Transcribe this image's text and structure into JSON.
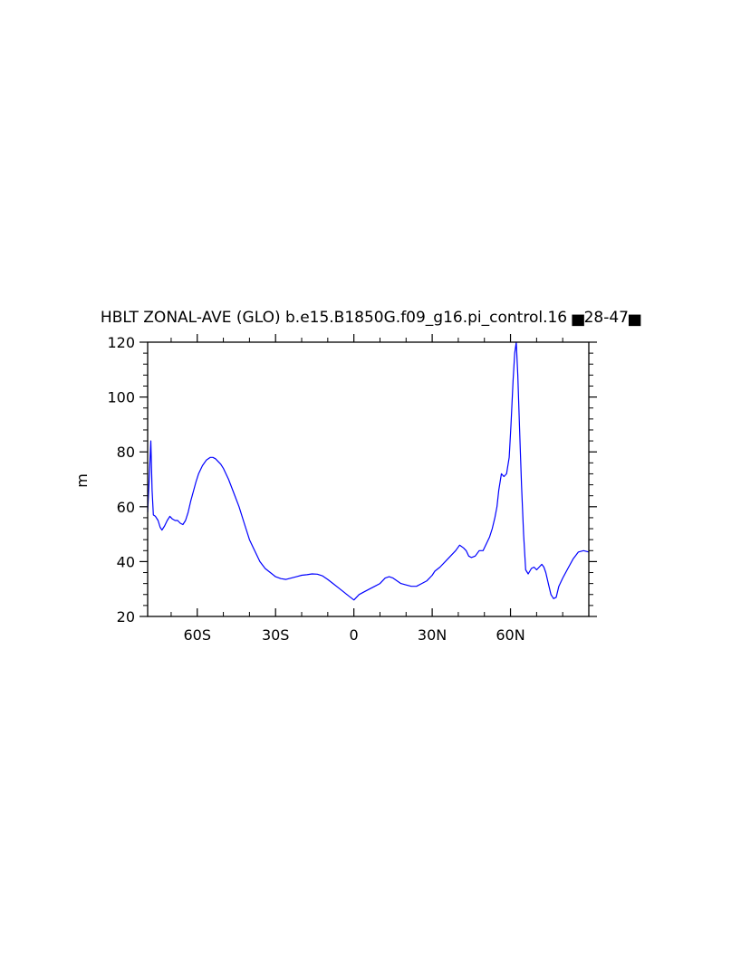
{
  "chart_data": {
    "type": "line",
    "title": "HBLT ZONAL-AVE (GLO) b.e15.B1850G.f09_g16.pi_control.16 ▅28-47▅",
    "xlabel": "",
    "ylabel": "m",
    "xlim": [
      -79,
      90
    ],
    "ylim": [
      20,
      120
    ],
    "x_ticks": [
      {
        "value": -60,
        "label": "60S"
      },
      {
        "value": -30,
        "label": "30S"
      },
      {
        "value": 0,
        "label": "0"
      },
      {
        "value": 30,
        "label": "30N"
      },
      {
        "value": 60,
        "label": "60N"
      }
    ],
    "y_ticks": [
      {
        "value": 20,
        "label": "20"
      },
      {
        "value": 40,
        "label": "40"
      },
      {
        "value": 60,
        "label": "60"
      },
      {
        "value": 80,
        "label": "80"
      },
      {
        "value": 100,
        "label": "100"
      },
      {
        "value": 120,
        "label": "120"
      }
    ],
    "grid": false,
    "line_color": "#0000ff",
    "series": [
      {
        "x": [
          -79,
          -78.4,
          -77.8,
          -77.3,
          -76.8,
          -76,
          -75,
          -74.2,
          -73.5,
          -72.5,
          -71.5,
          -70.5,
          -69.5,
          -68.5,
          -67.5,
          -66.5,
          -65.5,
          -64.5,
          -63.5,
          -62.5,
          -61.5,
          -60.5,
          -59.5,
          -58,
          -56.5,
          -55,
          -54,
          -53,
          -52,
          -51,
          -50,
          -48,
          -46,
          -44,
          -42,
          -40,
          -38,
          -36,
          -34,
          -32,
          -30,
          -28,
          -26,
          -24,
          -22,
          -20,
          -18,
          -16,
          -14,
          -12,
          -10,
          -8,
          -6,
          -4,
          -2,
          0,
          2,
          4,
          6,
          8,
          10,
          12,
          13.5,
          15,
          16.5,
          18,
          20,
          22,
          24,
          26,
          28,
          30,
          31,
          33,
          35,
          37,
          39,
          40.5,
          42,
          43,
          44,
          45,
          46.5,
          48,
          49.5,
          51,
          52,
          53,
          54,
          54.8,
          55.5,
          56.5,
          57.5,
          58.5,
          59.5,
          60.2,
          61,
          61.6,
          62.2,
          62.8,
          63.5,
          64.2,
          65,
          65.8,
          66.8,
          68,
          69,
          70,
          71,
          72,
          72.8,
          73.5,
          74.5,
          75.5,
          76.5,
          77.5,
          78.5,
          80,
          82,
          84,
          86,
          88,
          90
        ],
        "y": [
          58,
          70,
          84,
          66,
          57,
          56.5,
          55,
          52.5,
          51.5,
          53,
          55,
          56.5,
          55.5,
          55,
          55,
          54,
          53.5,
          55,
          58,
          62,
          65.5,
          69,
          72,
          75,
          77,
          78,
          78,
          77.5,
          76.5,
          75.5,
          74,
          70,
          65,
          60,
          54,
          48,
          44,
          40,
          37.5,
          36,
          34.5,
          33.8,
          33.5,
          34,
          34.5,
          35,
          35.2,
          35.5,
          35.4,
          34.8,
          33.5,
          32,
          30.5,
          29,
          27.5,
          26,
          28,
          29,
          30,
          31,
          32,
          34,
          34.5,
          34,
          33,
          32,
          31.5,
          31,
          31,
          32,
          33,
          35,
          36.5,
          38,
          40,
          42,
          44,
          46,
          45,
          44,
          42,
          41.5,
          42,
          44,
          44,
          47,
          49,
          52,
          56,
          60,
          66,
          72,
          71,
          72,
          78,
          90,
          106,
          116,
          120,
          108,
          88,
          68,
          50,
          37,
          35.5,
          37.5,
          38,
          37,
          38,
          39,
          38,
          36,
          32,
          28,
          26.5,
          27,
          31,
          34,
          37.5,
          41,
          43.5,
          44,
          43.5
        ]
      }
    ]
  }
}
